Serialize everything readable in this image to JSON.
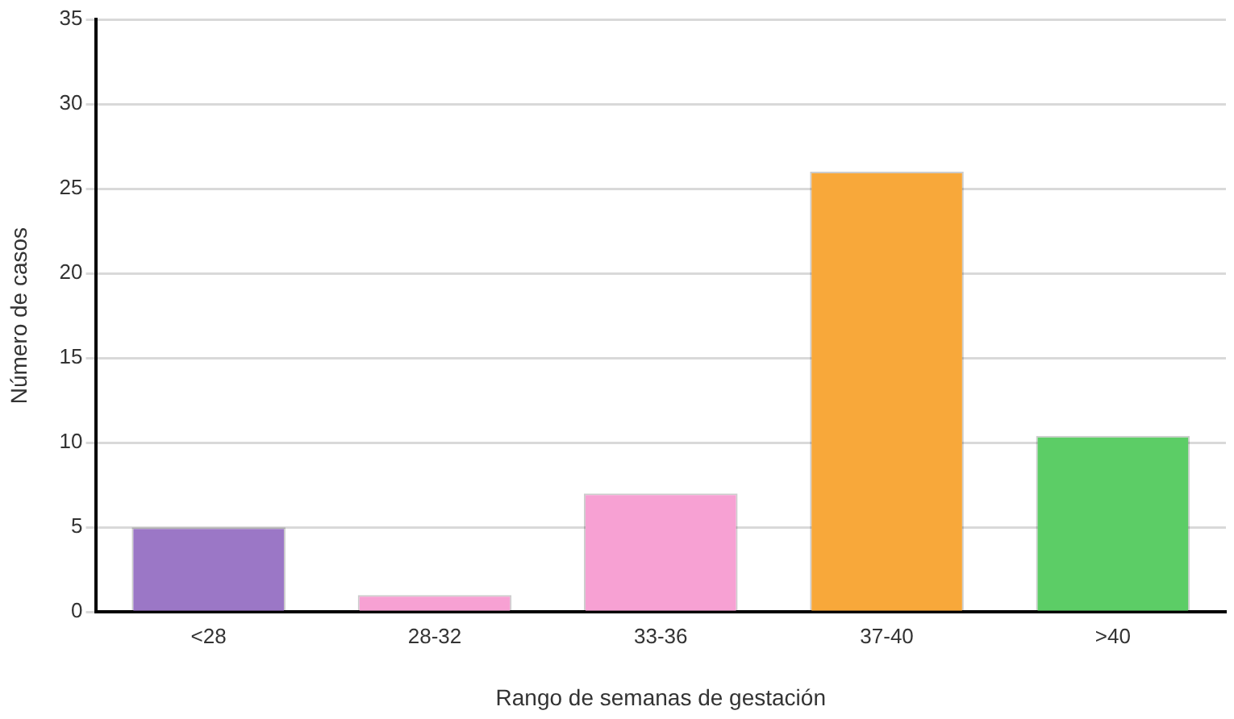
{
  "chart_data": {
    "type": "bar",
    "xlabel": "Rango de semanas de gestación",
    "ylabel": "Número de casos",
    "categories": [
      "<28",
      "28-32",
      "33-36",
      "37-40",
      ">40"
    ],
    "values": [
      5,
      1,
      7,
      26,
      10.4
    ],
    "colors": [
      "#9b77c6",
      "#f7a1d3",
      "#f7a1d3",
      "#f8a83a",
      "#5ccd66"
    ],
    "ylim": [
      0,
      35
    ],
    "yticks": [
      0,
      5,
      10,
      15,
      20,
      25,
      30,
      35
    ],
    "grid": "y",
    "legend": false
  }
}
